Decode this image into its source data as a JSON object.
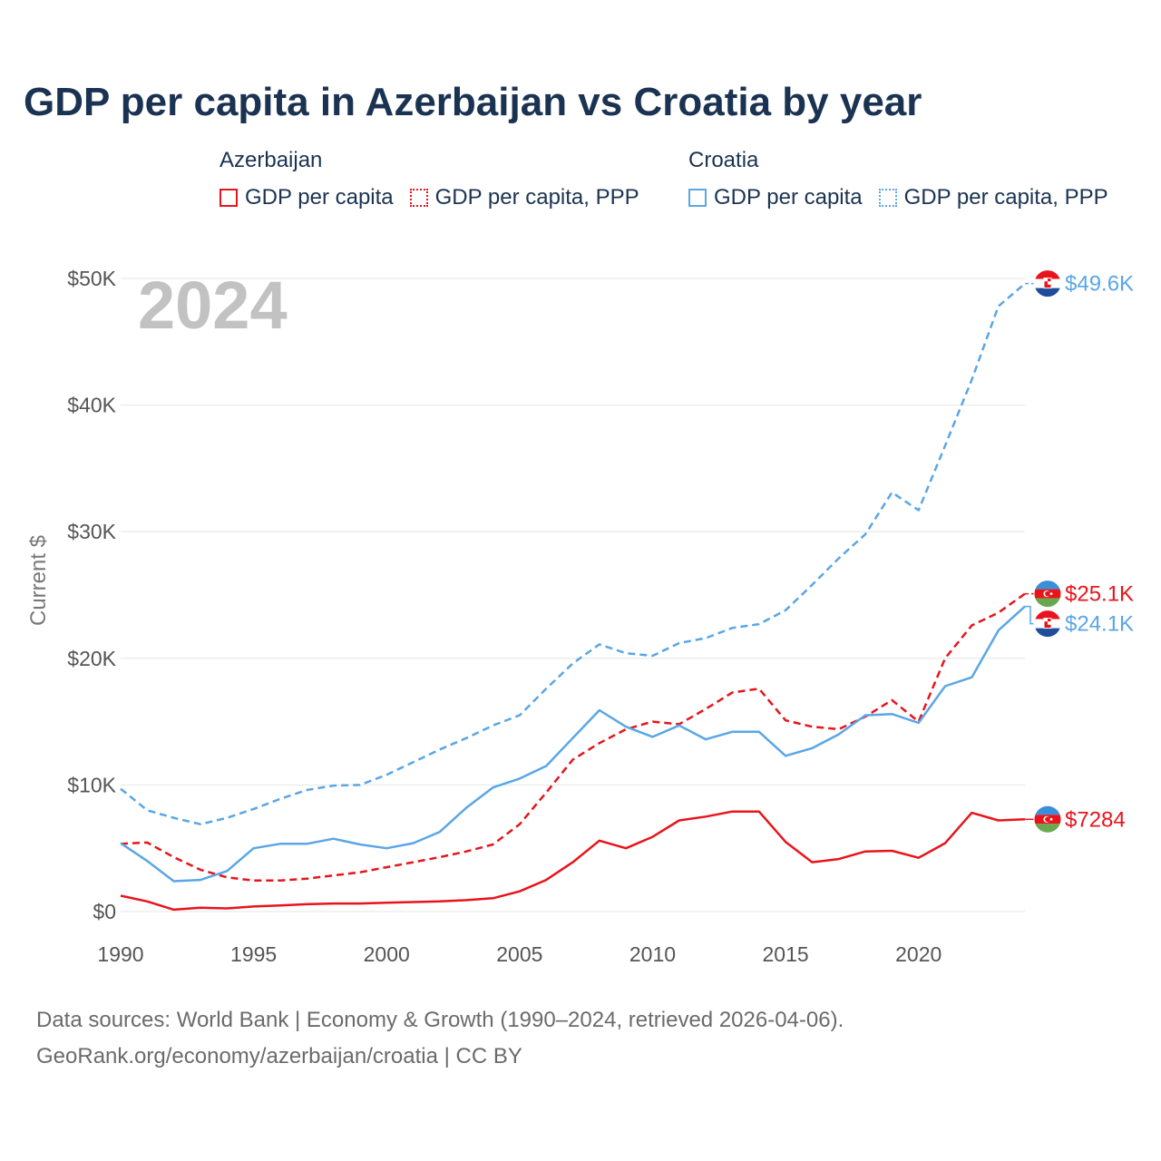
{
  "title": "GDP per capita in Azerbaijan vs Croatia by year",
  "legend": {
    "groups": [
      {
        "name": "Azerbaijan",
        "color": "#e8141c",
        "items": [
          "GDP per capita",
          "GDP per capita, PPP"
        ]
      },
      {
        "name": "Croatia",
        "color": "#5aa6e6",
        "items": [
          "GDP per capita",
          "GDP per capita, PPP"
        ]
      }
    ]
  },
  "source": {
    "line1": "Data sources: World Bank | Economy & Growth (1990–2024, retrieved 2026-04-06).",
    "line2": "GeoRank.org/economy/azerbaijan/croatia | CC BY"
  },
  "chart_data": {
    "type": "line",
    "ylabel": "Current $",
    "xlabel": "",
    "year_watermark": "2024",
    "ylim": [
      0,
      50000
    ],
    "xlim": [
      1990,
      2024
    ],
    "y_ticks": [
      {
        "value": 0,
        "label": "$0"
      },
      {
        "value": 10000,
        "label": "$10K"
      },
      {
        "value": 20000,
        "label": "$20K"
      },
      {
        "value": 30000,
        "label": "$30K"
      },
      {
        "value": 40000,
        "label": "$40K"
      },
      {
        "value": 50000,
        "label": "$50K"
      }
    ],
    "x_ticks": [
      {
        "value": 1990,
        "label": "1990"
      },
      {
        "value": 1995,
        "label": "1995"
      },
      {
        "value": 2000,
        "label": "2000"
      },
      {
        "value": 2005,
        "label": "2005"
      },
      {
        "value": 2010,
        "label": "2010"
      },
      {
        "value": 2015,
        "label": "2015"
      },
      {
        "value": 2020,
        "label": "2020"
      }
    ],
    "grid": true,
    "x": [
      1990,
      1991,
      1992,
      1993,
      1994,
      1995,
      1996,
      1997,
      1998,
      1999,
      2000,
      2001,
      2002,
      2003,
      2004,
      2005,
      2006,
      2007,
      2008,
      2009,
      2010,
      2011,
      2012,
      2013,
      2014,
      2015,
      2016,
      2017,
      2018,
      2019,
      2020,
      2021,
      2022,
      2023,
      2024
    ],
    "series": [
      {
        "name": "Azerbaijan GDP per capita",
        "country": "Azerbaijan",
        "style": "solid",
        "color": "#e8141c",
        "end_label": "$7284",
        "values": [
          1250,
          800,
          150,
          300,
          250,
          400,
          480,
          580,
          640,
          640,
          700,
          750,
          800,
          900,
          1050,
          1600,
          2500,
          3900,
          5600,
          5000,
          5900,
          7200,
          7500,
          7900,
          7900,
          5500,
          3900,
          4150,
          4750,
          4800,
          4250,
          5400,
          7800,
          7200,
          7284
        ]
      },
      {
        "name": "Azerbaijan GDP per capita, PPP",
        "country": "Azerbaijan",
        "style": "dashed",
        "color": "#e8141c",
        "end_label": "$25.1K",
        "values": [
          5350,
          5450,
          4300,
          3300,
          2700,
          2450,
          2450,
          2600,
          2850,
          3100,
          3500,
          3900,
          4300,
          4750,
          5300,
          6900,
          9400,
          12000,
          13300,
          14400,
          15000,
          14800,
          16000,
          17300,
          17600,
          15100,
          14600,
          14400,
          15400,
          16700,
          15000,
          20000,
          22600,
          23600,
          25100
        ]
      },
      {
        "name": "Croatia GDP per capita",
        "country": "Croatia",
        "style": "solid",
        "color": "#5aa6e6",
        "end_label": "$24.1K",
        "values": [
          5400,
          4000,
          2400,
          2500,
          3200,
          5000,
          5350,
          5350,
          5750,
          5300,
          5000,
          5400,
          6300,
          8200,
          9800,
          10500,
          11500,
          13700,
          15900,
          14600,
          13800,
          14700,
          13600,
          14200,
          14200,
          12300,
          12900,
          14000,
          15500,
          15600,
          14900,
          17800,
          18500,
          22200,
          24100
        ]
      },
      {
        "name": "Croatia GDP per capita, PPP",
        "country": "Croatia",
        "style": "dashed",
        "color": "#5aa6e6",
        "end_label": "$49.6K",
        "values": [
          9700,
          8000,
          7400,
          6900,
          7400,
          8100,
          8900,
          9600,
          9950,
          10000,
          10800,
          11800,
          12800,
          13700,
          14700,
          15500,
          17600,
          19600,
          21100,
          20400,
          20200,
          21200,
          21600,
          22400,
          22700,
          23800,
          25800,
          27900,
          29800,
          33100,
          31700,
          36800,
          42000,
          47800,
          49600
        ]
      }
    ],
    "end_markers": [
      {
        "series": "Croatia GDP per capita, PPP",
        "flag": "croatia-flag-icon"
      },
      {
        "series": "Azerbaijan GDP per capita, PPP",
        "flag": "azerbaijan-flag-icon"
      },
      {
        "series": "Croatia GDP per capita",
        "flag": "croatia-flag-icon"
      },
      {
        "series": "Azerbaijan GDP per capita",
        "flag": "azerbaijan-flag-icon"
      }
    ],
    "colors": {
      "grid": "#e6e6e6",
      "axis_text": "#555555",
      "watermark": "#c2c2c2"
    }
  }
}
